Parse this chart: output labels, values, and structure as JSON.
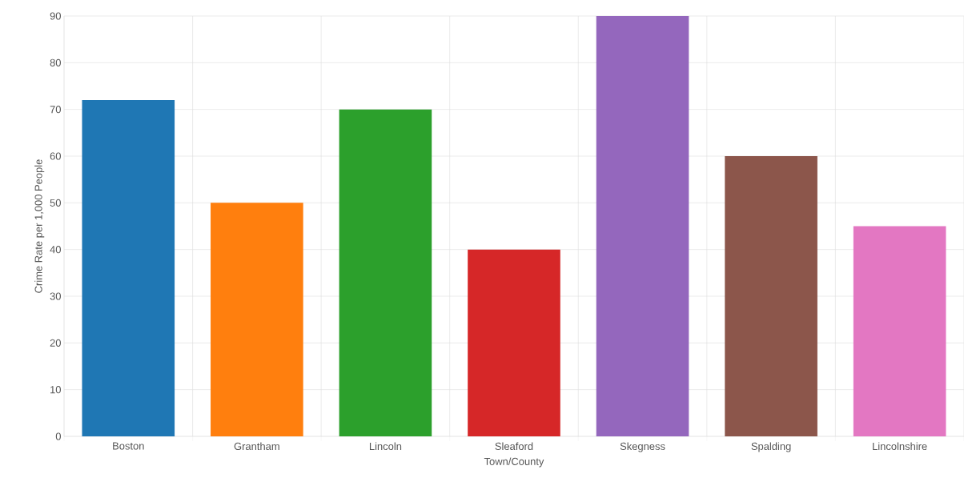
{
  "chart_data": {
    "type": "bar",
    "xlabel": "Town/County",
    "ylabel": "Crime Rate per 1,000 People",
    "categories": [
      "Boston",
      "Grantham",
      "Lincoln",
      "Sleaford",
      "Skegness",
      "Spalding",
      "Lincolnshire"
    ],
    "values": [
      72,
      50,
      70,
      40,
      90,
      60,
      45
    ],
    "colors": [
      "#1f77b4",
      "#ff7f0e",
      "#2ca02c",
      "#d62728",
      "#9467bd",
      "#8c564b",
      "#e377c2"
    ],
    "ylim": [
      0,
      90
    ],
    "yticks": [
      0,
      10,
      20,
      30,
      40,
      50,
      60,
      70,
      80,
      90
    ],
    "grid": true
  }
}
